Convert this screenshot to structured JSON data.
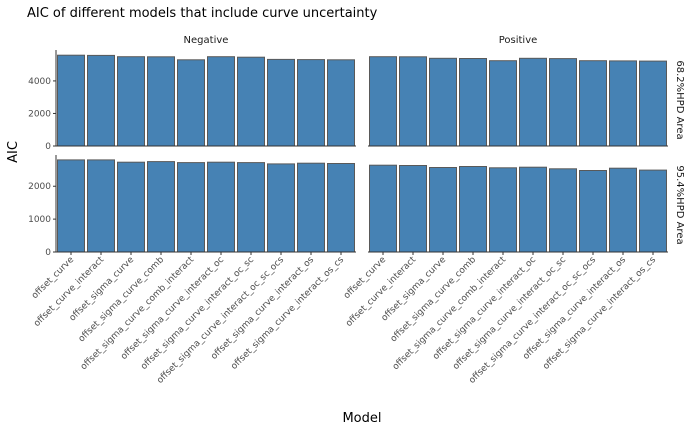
{
  "chart_data": {
    "type": "bar",
    "title": "AIC of different models that include curve uncertainty",
    "xlabel": "Model",
    "ylabel": "AIC",
    "categories": [
      "offset_curve",
      "offset_curve_interact",
      "offset_sigma_curve",
      "offset_sigma_curve_comb",
      "offset_sigma_curve_comb_interact",
      "offset_sigma_curve_interact_oc",
      "offset_sigma_curve_interact_oc_sc",
      "offset_sigma_curve_interact_oc_sc_ocs",
      "offset_sigma_curve_interact_os",
      "offset_sigma_curve_interact_os_cs"
    ],
    "columns": [
      "Negative",
      "Positive"
    ],
    "rows": [
      "68.2%HPD Area",
      "95.4%HPD Area"
    ],
    "panels": [
      {
        "row": "68.2%HPD Area",
        "column": "Negative",
        "ylim": [
          0,
          5900
        ],
        "yticks": [
          0,
          2000,
          4000
        ],
        "values": [
          5580,
          5570,
          5490,
          5480,
          5300,
          5490,
          5460,
          5320,
          5310,
          5300
        ]
      },
      {
        "row": "68.2%HPD Area",
        "column": "Positive",
        "ylim": [
          0,
          5900
        ],
        "yticks": [
          0,
          2000,
          4000
        ],
        "values": [
          5490,
          5480,
          5390,
          5380,
          5240,
          5390,
          5370,
          5240,
          5230,
          5220
        ]
      },
      {
        "row": "95.4%HPD Area",
        "column": "Negative",
        "ylim": [
          0,
          2950
        ],
        "yticks": [
          0,
          1000,
          2000
        ],
        "values": [
          2800,
          2800,
          2730,
          2750,
          2720,
          2730,
          2720,
          2680,
          2700,
          2690
        ]
      },
      {
        "row": "95.4%HPD Area",
        "column": "Positive",
        "ylim": [
          0,
          2950
        ],
        "yticks": [
          0,
          1000,
          2000
        ],
        "values": [
          2640,
          2630,
          2570,
          2600,
          2560,
          2580,
          2530,
          2480,
          2550,
          2490
        ]
      }
    ],
    "bar_color": "#4682b4",
    "grid": false,
    "legend": "none"
  }
}
